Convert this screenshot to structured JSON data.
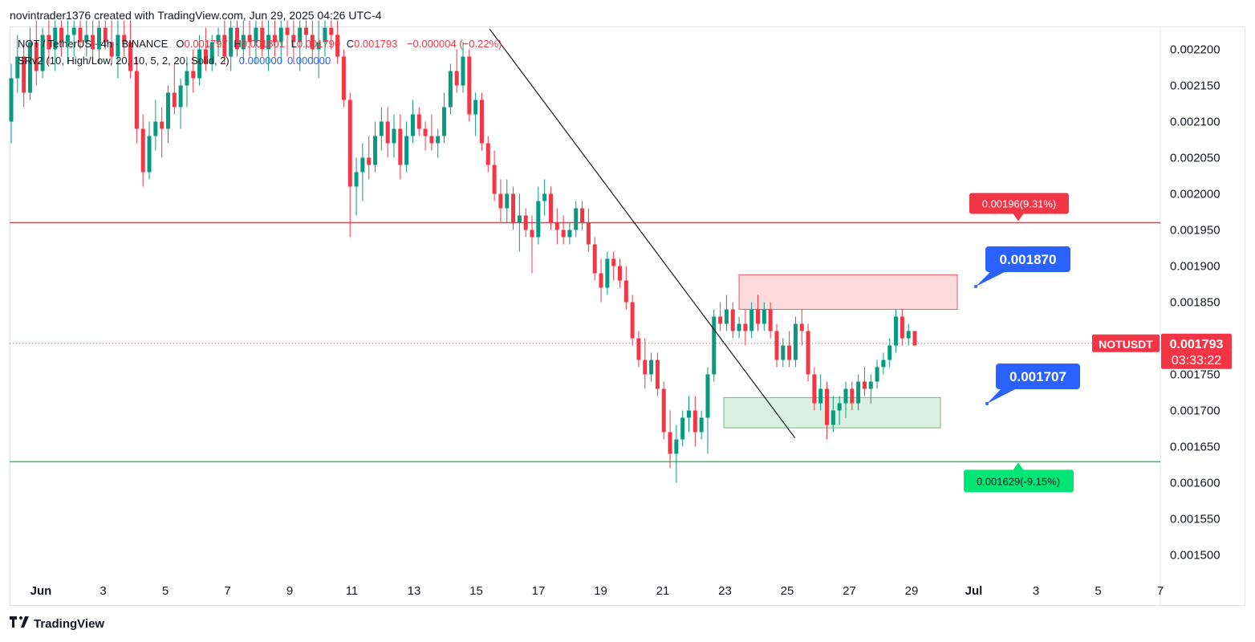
{
  "header": {
    "text": "novintrader1376 created with TradingView.com, Jun 29, 2025 04:26 UTC-4"
  },
  "legend": {
    "symbol": "NOT / TetherUS · 4h · BINANCE",
    "open_label": "O",
    "open": "0.001797",
    "high_label": "H",
    "high": "0.001801",
    "low_label": "L",
    "low": "0.001790",
    "close_label": "C",
    "close": "0.001793",
    "change": "−0.000004 (−0.22%)",
    "indicator": "SRv2 (10, High/Low, 20, 10, 5, 2, 20, Solid, 2)",
    "ind_value1": "0.000000",
    "ind_value2": "0.000000"
  },
  "footer": {
    "brand": "TradingView"
  },
  "colors": {
    "up": "#089981",
    "down": "#f23645",
    "resistance": "#f23645",
    "support": "#22c55e",
    "callout": "#2962ff"
  },
  "chart_data": {
    "type": "candlestick",
    "symbol": "NOTUSDT",
    "ylim": [
      0.00146,
      0.00224
    ],
    "yticks": [
      "0.002200",
      "0.002150",
      "0.002100",
      "0.002050",
      "0.002000",
      "0.001950",
      "0.001900",
      "0.001850",
      "0.001800",
      "0.001750",
      "0.001700",
      "0.001650",
      "0.001600",
      "0.001550",
      "0.001500"
    ],
    "xticks": [
      "Jun",
      "3",
      "5",
      "7",
      "9",
      "11",
      "13",
      "15",
      "17",
      "19",
      "21",
      "23",
      "25",
      "27",
      "29",
      "Jul",
      "3",
      "5",
      "7"
    ],
    "last_price": "0.001793",
    "countdown": "03:33:22",
    "price_label": "NOTUSDT",
    "resistance_line": {
      "value": 0.00196,
      "label": "0.00196(9.31%)"
    },
    "support_line": {
      "value": 0.001629,
      "label": "0.001629(-9.15%)"
    },
    "callouts": [
      {
        "value": 0.00187,
        "label": "0.001870"
      },
      {
        "value": 0.001707,
        "label": "0.001707"
      }
    ],
    "zones": [
      {
        "name": "supply-zone",
        "from_date": "Jun 23",
        "to_date": "Jun 29",
        "low": 0.00184,
        "high": 0.001888
      },
      {
        "name": "demand-zone",
        "from_date": "Jun 23",
        "to_date": "Jun 29",
        "low": 0.001676,
        "high": 0.001718
      }
    ],
    "trendline": {
      "from": [
        "Jun 16",
        0.002228
      ],
      "to": [
        "Jun 26",
        0.001662
      ]
    },
    "candles": [
      [
        0.0021,
        0.00218,
        0.00207,
        0.00216
      ],
      [
        0.00216,
        0.00222,
        0.00214,
        0.00219
      ],
      [
        0.00219,
        0.00221,
        0.00212,
        0.00214
      ],
      [
        0.00214,
        0.00223,
        0.00213,
        0.00221
      ],
      [
        0.00221,
        0.00224,
        0.00215,
        0.00217
      ],
      [
        0.00217,
        0.00223,
        0.00216,
        0.00222
      ],
      [
        0.00222,
        0.00224,
        0.00218,
        0.0022
      ],
      [
        0.0022,
        0.00224,
        0.00217,
        0.00223
      ],
      [
        0.00223,
        0.00224,
        0.00219,
        0.00221
      ],
      [
        0.00221,
        0.00224,
        0.00218,
        0.00222
      ],
      [
        0.00222,
        0.00224,
        0.00219,
        0.00223
      ],
      [
        0.00223,
        0.00224,
        0.0022,
        0.00221
      ],
      [
        0.00221,
        0.00224,
        0.00219,
        0.00222
      ],
      [
        0.00222,
        0.00224,
        0.00218,
        0.0022
      ],
      [
        0.0022,
        0.00224,
        0.00218,
        0.00223
      ],
      [
        0.00223,
        0.00224,
        0.0022,
        0.00221
      ],
      [
        0.00221,
        0.00224,
        0.00218,
        0.00219
      ],
      [
        0.00219,
        0.00224,
        0.00216,
        0.00222
      ],
      [
        0.00222,
        0.00224,
        0.00219,
        0.00221
      ],
      [
        0.00221,
        0.00224,
        0.00216,
        0.00217
      ],
      [
        0.00217,
        0.00219,
        0.00207,
        0.00209
      ],
      [
        0.00209,
        0.00211,
        0.00201,
        0.00203
      ],
      [
        0.00203,
        0.0021,
        0.00202,
        0.00208
      ],
      [
        0.00208,
        0.00213,
        0.00206,
        0.0021
      ],
      [
        0.0021,
        0.00212,
        0.00205,
        0.00209
      ],
      [
        0.00209,
        0.00215,
        0.00207,
        0.00214
      ],
      [
        0.00214,
        0.00218,
        0.00211,
        0.00212
      ],
      [
        0.00212,
        0.00216,
        0.00209,
        0.00215
      ],
      [
        0.00215,
        0.00219,
        0.00212,
        0.00217
      ],
      [
        0.00217,
        0.0022,
        0.00214,
        0.00216
      ],
      [
        0.00216,
        0.00222,
        0.00215,
        0.0022
      ],
      [
        0.0022,
        0.00223,
        0.00217,
        0.00218
      ],
      [
        0.00218,
        0.00222,
        0.00217,
        0.00221
      ],
      [
        0.00221,
        0.00223,
        0.00219,
        0.00222
      ],
      [
        0.00222,
        0.00224,
        0.00218,
        0.00219
      ],
      [
        0.00219,
        0.00224,
        0.00217,
        0.00223
      ],
      [
        0.00223,
        0.00224,
        0.00219,
        0.0022
      ],
      [
        0.0022,
        0.00224,
        0.00218,
        0.00222
      ],
      [
        0.00222,
        0.00224,
        0.00219,
        0.00221
      ],
      [
        0.00221,
        0.00224,
        0.00218,
        0.00223
      ],
      [
        0.00223,
        0.00224,
        0.00219,
        0.0022
      ],
      [
        0.0022,
        0.00224,
        0.00217,
        0.00222
      ],
      [
        0.00222,
        0.00224,
        0.00219,
        0.00221
      ],
      [
        0.00221,
        0.00224,
        0.00218,
        0.00223
      ],
      [
        0.00223,
        0.00224,
        0.00219,
        0.00222
      ],
      [
        0.00222,
        0.00224,
        0.00218,
        0.00221
      ],
      [
        0.00221,
        0.00224,
        0.00217,
        0.00223
      ],
      [
        0.00223,
        0.00224,
        0.0022,
        0.00222
      ],
      [
        0.00222,
        0.00224,
        0.00218,
        0.0022
      ],
      [
        0.0022,
        0.00224,
        0.00216,
        0.00221
      ],
      [
        0.00221,
        0.00224,
        0.00219,
        0.00223
      ],
      [
        0.00223,
        0.00224,
        0.0022,
        0.00222
      ],
      [
        0.00222,
        0.00224,
        0.00218,
        0.00219
      ],
      [
        0.00219,
        0.0022,
        0.00212,
        0.00213
      ],
      [
        0.00213,
        0.00214,
        0.00194,
        0.00201
      ],
      [
        0.00201,
        0.00205,
        0.00197,
        0.00203
      ],
      [
        0.00203,
        0.00207,
        0.00199,
        0.00205
      ],
      [
        0.00205,
        0.00208,
        0.00202,
        0.00204
      ],
      [
        0.00204,
        0.0021,
        0.00203,
        0.00208
      ],
      [
        0.00208,
        0.00212,
        0.00206,
        0.0021
      ],
      [
        0.0021,
        0.00212,
        0.00205,
        0.00207
      ],
      [
        0.00207,
        0.00211,
        0.00205,
        0.00209
      ],
      [
        0.00209,
        0.00211,
        0.00202,
        0.00204
      ],
      [
        0.00204,
        0.0021,
        0.00203,
        0.00208
      ],
      [
        0.00208,
        0.00213,
        0.00207,
        0.00211
      ],
      [
        0.00211,
        0.00212,
        0.00208,
        0.00209
      ],
      [
        0.00209,
        0.0021,
        0.00206,
        0.00208
      ],
      [
        0.00208,
        0.00211,
        0.00206,
        0.00207
      ],
      [
        0.00207,
        0.00209,
        0.00205,
        0.00208
      ],
      [
        0.00208,
        0.00214,
        0.00207,
        0.00212
      ],
      [
        0.00212,
        0.00218,
        0.00211,
        0.00217
      ],
      [
        0.00217,
        0.0022,
        0.00214,
        0.00215
      ],
      [
        0.00215,
        0.00221,
        0.00214,
        0.00219
      ],
      [
        0.00219,
        0.0022,
        0.0021,
        0.00211
      ],
      [
        0.00211,
        0.00214,
        0.00208,
        0.00213
      ],
      [
        0.00213,
        0.00214,
        0.00206,
        0.00207
      ],
      [
        0.00207,
        0.00208,
        0.00203,
        0.00204
      ],
      [
        0.00204,
        0.00206,
        0.00199,
        0.002
      ],
      [
        0.002,
        0.00202,
        0.00196,
        0.00198
      ],
      [
        0.00198,
        0.00202,
        0.00196,
        0.002
      ],
      [
        0.002,
        0.00201,
        0.00195,
        0.00196
      ],
      [
        0.00196,
        0.002,
        0.00192,
        0.00197
      ],
      [
        0.00197,
        0.00198,
        0.00194,
        0.00195
      ],
      [
        0.00195,
        0.00197,
        0.00189,
        0.00194
      ],
      [
        0.00194,
        0.00201,
        0.00193,
        0.00199
      ],
      [
        0.00199,
        0.00202,
        0.00197,
        0.002
      ],
      [
        0.002,
        0.00201,
        0.00195,
        0.00196
      ],
      [
        0.00196,
        0.00198,
        0.00193,
        0.00195
      ],
      [
        0.00195,
        0.00197,
        0.00193,
        0.00194
      ],
      [
        0.00194,
        0.00196,
        0.00193,
        0.00195
      ],
      [
        0.00195,
        0.00199,
        0.00194,
        0.00198
      ],
      [
        0.00198,
        0.00199,
        0.00195,
        0.00196
      ],
      [
        0.00196,
        0.00198,
        0.00192,
        0.00193
      ],
      [
        0.00193,
        0.00194,
        0.00188,
        0.00189
      ],
      [
        0.00189,
        0.00191,
        0.00185,
        0.00187
      ],
      [
        0.00187,
        0.00192,
        0.00186,
        0.00191
      ],
      [
        0.00191,
        0.00192,
        0.00188,
        0.0019
      ],
      [
        0.0019,
        0.00191,
        0.00187,
        0.00188
      ],
      [
        0.00188,
        0.0019,
        0.00184,
        0.00185
      ],
      [
        0.00185,
        0.00186,
        0.00179,
        0.0018
      ],
      [
        0.0018,
        0.00181,
        0.00176,
        0.00177
      ],
      [
        0.00177,
        0.0018,
        0.00173,
        0.00175
      ],
      [
        0.00175,
        0.00178,
        0.00174,
        0.00177
      ],
      [
        0.00177,
        0.00178,
        0.00172,
        0.00173
      ],
      [
        0.00173,
        0.00174,
        0.00166,
        0.00167
      ],
      [
        0.00167,
        0.0017,
        0.00162,
        0.00164
      ],
      [
        0.00164,
        0.00168,
        0.0016,
        0.00166
      ],
      [
        0.00166,
        0.0017,
        0.00165,
        0.00169
      ],
      [
        0.00169,
        0.00172,
        0.00167,
        0.0017
      ],
      [
        0.0017,
        0.00172,
        0.00165,
        0.00167
      ],
      [
        0.00167,
        0.0017,
        0.00166,
        0.00169
      ],
      [
        0.00169,
        0.00176,
        0.00164,
        0.00175
      ],
      [
        0.00175,
        0.00184,
        0.00174,
        0.00183
      ],
      [
        0.00183,
        0.00185,
        0.00181,
        0.00182
      ],
      [
        0.00182,
        0.00186,
        0.00181,
        0.00184
      ],
      [
        0.00184,
        0.00185,
        0.0018,
        0.00181
      ],
      [
        0.00181,
        0.00183,
        0.0018,
        0.00182
      ],
      [
        0.00182,
        0.00184,
        0.00179,
        0.00181
      ],
      [
        0.00181,
        0.00185,
        0.0018,
        0.00184
      ],
      [
        0.00184,
        0.00186,
        0.00181,
        0.00182
      ],
      [
        0.00182,
        0.00185,
        0.00181,
        0.00184
      ],
      [
        0.00184,
        0.00185,
        0.0018,
        0.00181
      ],
      [
        0.00181,
        0.00182,
        0.00176,
        0.00177
      ],
      [
        0.00177,
        0.0018,
        0.00176,
        0.00179
      ],
      [
        0.00179,
        0.00181,
        0.00176,
        0.00177
      ],
      [
        0.00177,
        0.00183,
        0.00176,
        0.00182
      ],
      [
        0.00182,
        0.00184,
        0.00179,
        0.00181
      ],
      [
        0.00181,
        0.00182,
        0.00174,
        0.00175
      ],
      [
        0.00175,
        0.00176,
        0.0017,
        0.00171
      ],
      [
        0.00171,
        0.00175,
        0.0017,
        0.00173
      ],
      [
        0.00173,
        0.00174,
        0.00166,
        0.00168
      ],
      [
        0.00168,
        0.00172,
        0.00167,
        0.0017
      ],
      [
        0.0017,
        0.00172,
        0.00168,
        0.00171
      ],
      [
        0.00171,
        0.00174,
        0.00169,
        0.00173
      ],
      [
        0.00173,
        0.00174,
        0.0017,
        0.00171
      ],
      [
        0.00171,
        0.00175,
        0.0017,
        0.00174
      ],
      [
        0.00174,
        0.00176,
        0.00172,
        0.00173
      ],
      [
        0.00173,
        0.00175,
        0.00171,
        0.00174
      ],
      [
        0.00174,
        0.00177,
        0.00173,
        0.00176
      ],
      [
        0.00176,
        0.00178,
        0.00175,
        0.00177
      ],
      [
        0.00177,
        0.0018,
        0.00176,
        0.00179
      ],
      [
        0.00179,
        0.00184,
        0.00178,
        0.00183
      ],
      [
        0.00183,
        0.00184,
        0.00179,
        0.0018
      ],
      [
        0.0018,
        0.00182,
        0.00179,
        0.00181
      ],
      [
        0.00181,
        0.00181,
        0.00179,
        0.00179
      ]
    ]
  }
}
